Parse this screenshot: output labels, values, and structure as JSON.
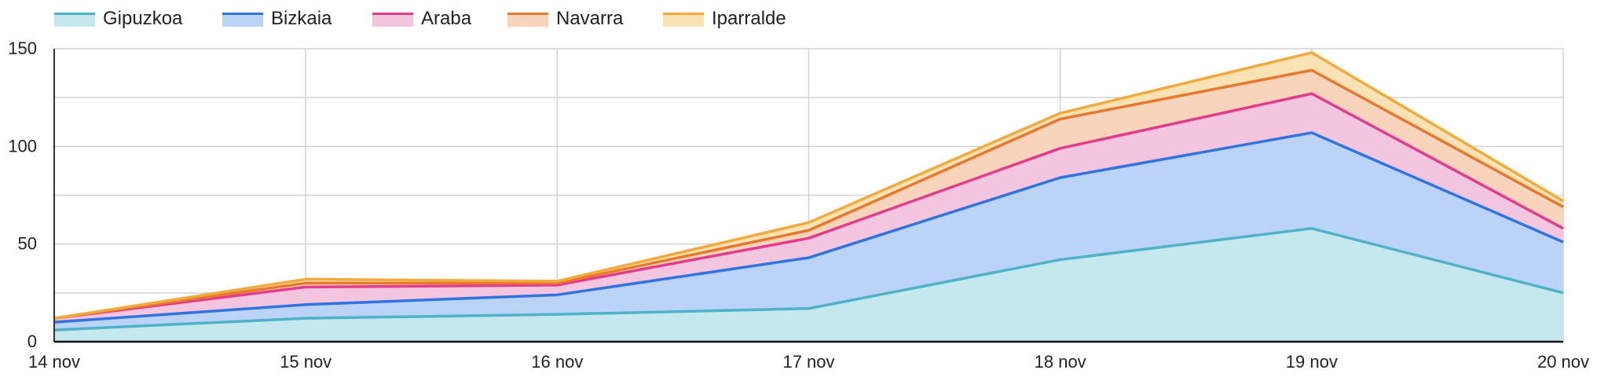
{
  "chart_data": {
    "type": "area",
    "stacked": true,
    "title": "",
    "xlabel": "",
    "ylabel": "",
    "categories": [
      "14 nov",
      "15 nov",
      "16 nov",
      "17 nov",
      "18 nov",
      "19 nov",
      "20 nov"
    ],
    "ylim": [
      0,
      150
    ],
    "yticks": [
      0,
      50,
      100,
      150
    ],
    "grid": true,
    "legend_position": "top-left",
    "series": [
      {
        "name": "Gipuzkoa",
        "values": [
          6,
          12,
          14,
          17,
          42,
          58,
          25
        ],
        "line_color": "#4eb3c8",
        "fill_color": "#c5e8ee"
      },
      {
        "name": "Bizkaia",
        "values": [
          4,
          7,
          10,
          26,
          42,
          49,
          26
        ],
        "line_color": "#2f74e0",
        "fill_color": "#bad3f7"
      },
      {
        "name": "Araba",
        "values": [
          2,
          9,
          5,
          10,
          15,
          20,
          7
        ],
        "line_color": "#e23c8c",
        "fill_color": "#f4c5de"
      },
      {
        "name": "Navarra",
        "values": [
          0,
          2,
          1,
          4,
          15,
          12,
          11
        ],
        "line_color": "#e8782c",
        "fill_color": "#f8d4bd"
      },
      {
        "name": "Iparralde",
        "values": [
          0,
          2,
          1,
          4,
          3,
          9,
          3
        ],
        "line_color": "#f2aa3b",
        "fill_color": "#fbe2b5"
      }
    ]
  }
}
